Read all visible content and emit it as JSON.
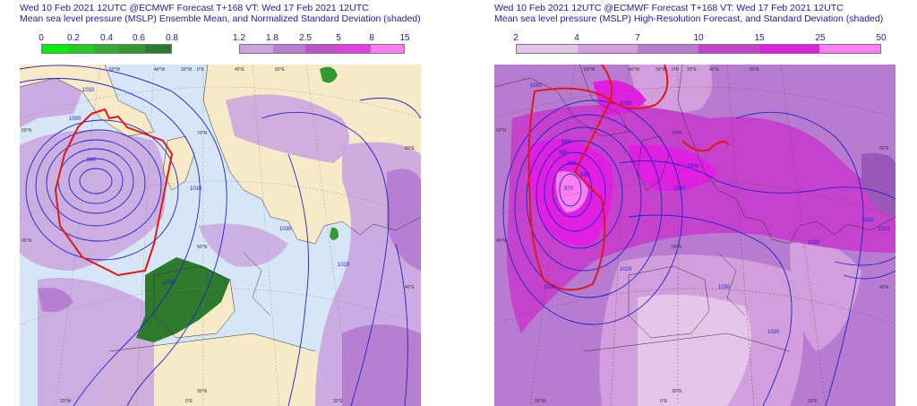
{
  "left_panel": {
    "title_line1": "Wed 10 Feb 2021 12UTC @ECMWF Forecast T+168 VT: Wed 17 Feb 2021 12UTC",
    "title_line2": "Mean sea level pressure (MSLP) Ensemble Mean, and Normalized Standard Deviation (shaded)",
    "green_scale": {
      "labels": [
        "0",
        "0.2",
        "0.4",
        "0.6",
        "0.8"
      ],
      "colors": [
        "#00ee00",
        "#22cc22",
        "#33aa33",
        "#339933",
        "#2d7a2d"
      ]
    },
    "purple_scale": {
      "labels": [
        "1.2",
        "1.8",
        "2.5",
        "5",
        "8",
        "15"
      ],
      "colors": [
        "#c9a5df",
        "#b67fcf",
        "#c050c8",
        "#e040e0",
        "#ff7ff0"
      ]
    },
    "contour_labels": [
      "1010",
      "1000",
      "990",
      "1010",
      "1020",
      "1030",
      "1020"
    ],
    "coords": {
      "top": [
        "60°W",
        "40°W",
        "20°W",
        "0°E",
        "40°E",
        "60°E"
      ],
      "left": [
        "60°N",
        "40°N"
      ],
      "right": [
        "60°E",
        "40°E"
      ],
      "bottom": [
        "20°W",
        "0°E",
        "20°E"
      ],
      "inner": [
        "70°N",
        "50°N",
        "30°N"
      ]
    }
  },
  "right_panel": {
    "title_line1": "Wed 10 Feb 2021 12UTC @ECMWF Forecast T+168 VT: Wed 17 Feb 2021 12UTC",
    "title_line2": "Mean sea level pressure (MSLP) High-Resolution Forecast, and Standard Deviation (shaded)",
    "scale": {
      "labels": [
        "2",
        "4",
        "7",
        "10",
        "15",
        "25",
        "50"
      ],
      "colors": [
        "#e4c7e8",
        "#d29fdc",
        "#b77bd0",
        "#c442cc",
        "#e020e0",
        "#ff80f0"
      ]
    },
    "contour_labels": [
      "1000",
      "990",
      "980",
      "970",
      "980",
      "990",
      "1000",
      "1010",
      "1020",
      "1030",
      "1020",
      "1010",
      "1010",
      "1000",
      "1000",
      "1020"
    ],
    "coords": {
      "top": [
        "60°W",
        "40°W",
        "20°W",
        "0°E",
        "20°E",
        "40°E",
        "60°E"
      ],
      "left": [
        "60°N",
        "40°N"
      ],
      "right": [
        "60°E",
        "40°E"
      ],
      "bottom": [
        "20°W",
        "0°E",
        "20°E"
      ],
      "inner": [
        "70°N",
        "50°N",
        "30°N"
      ]
    }
  }
}
